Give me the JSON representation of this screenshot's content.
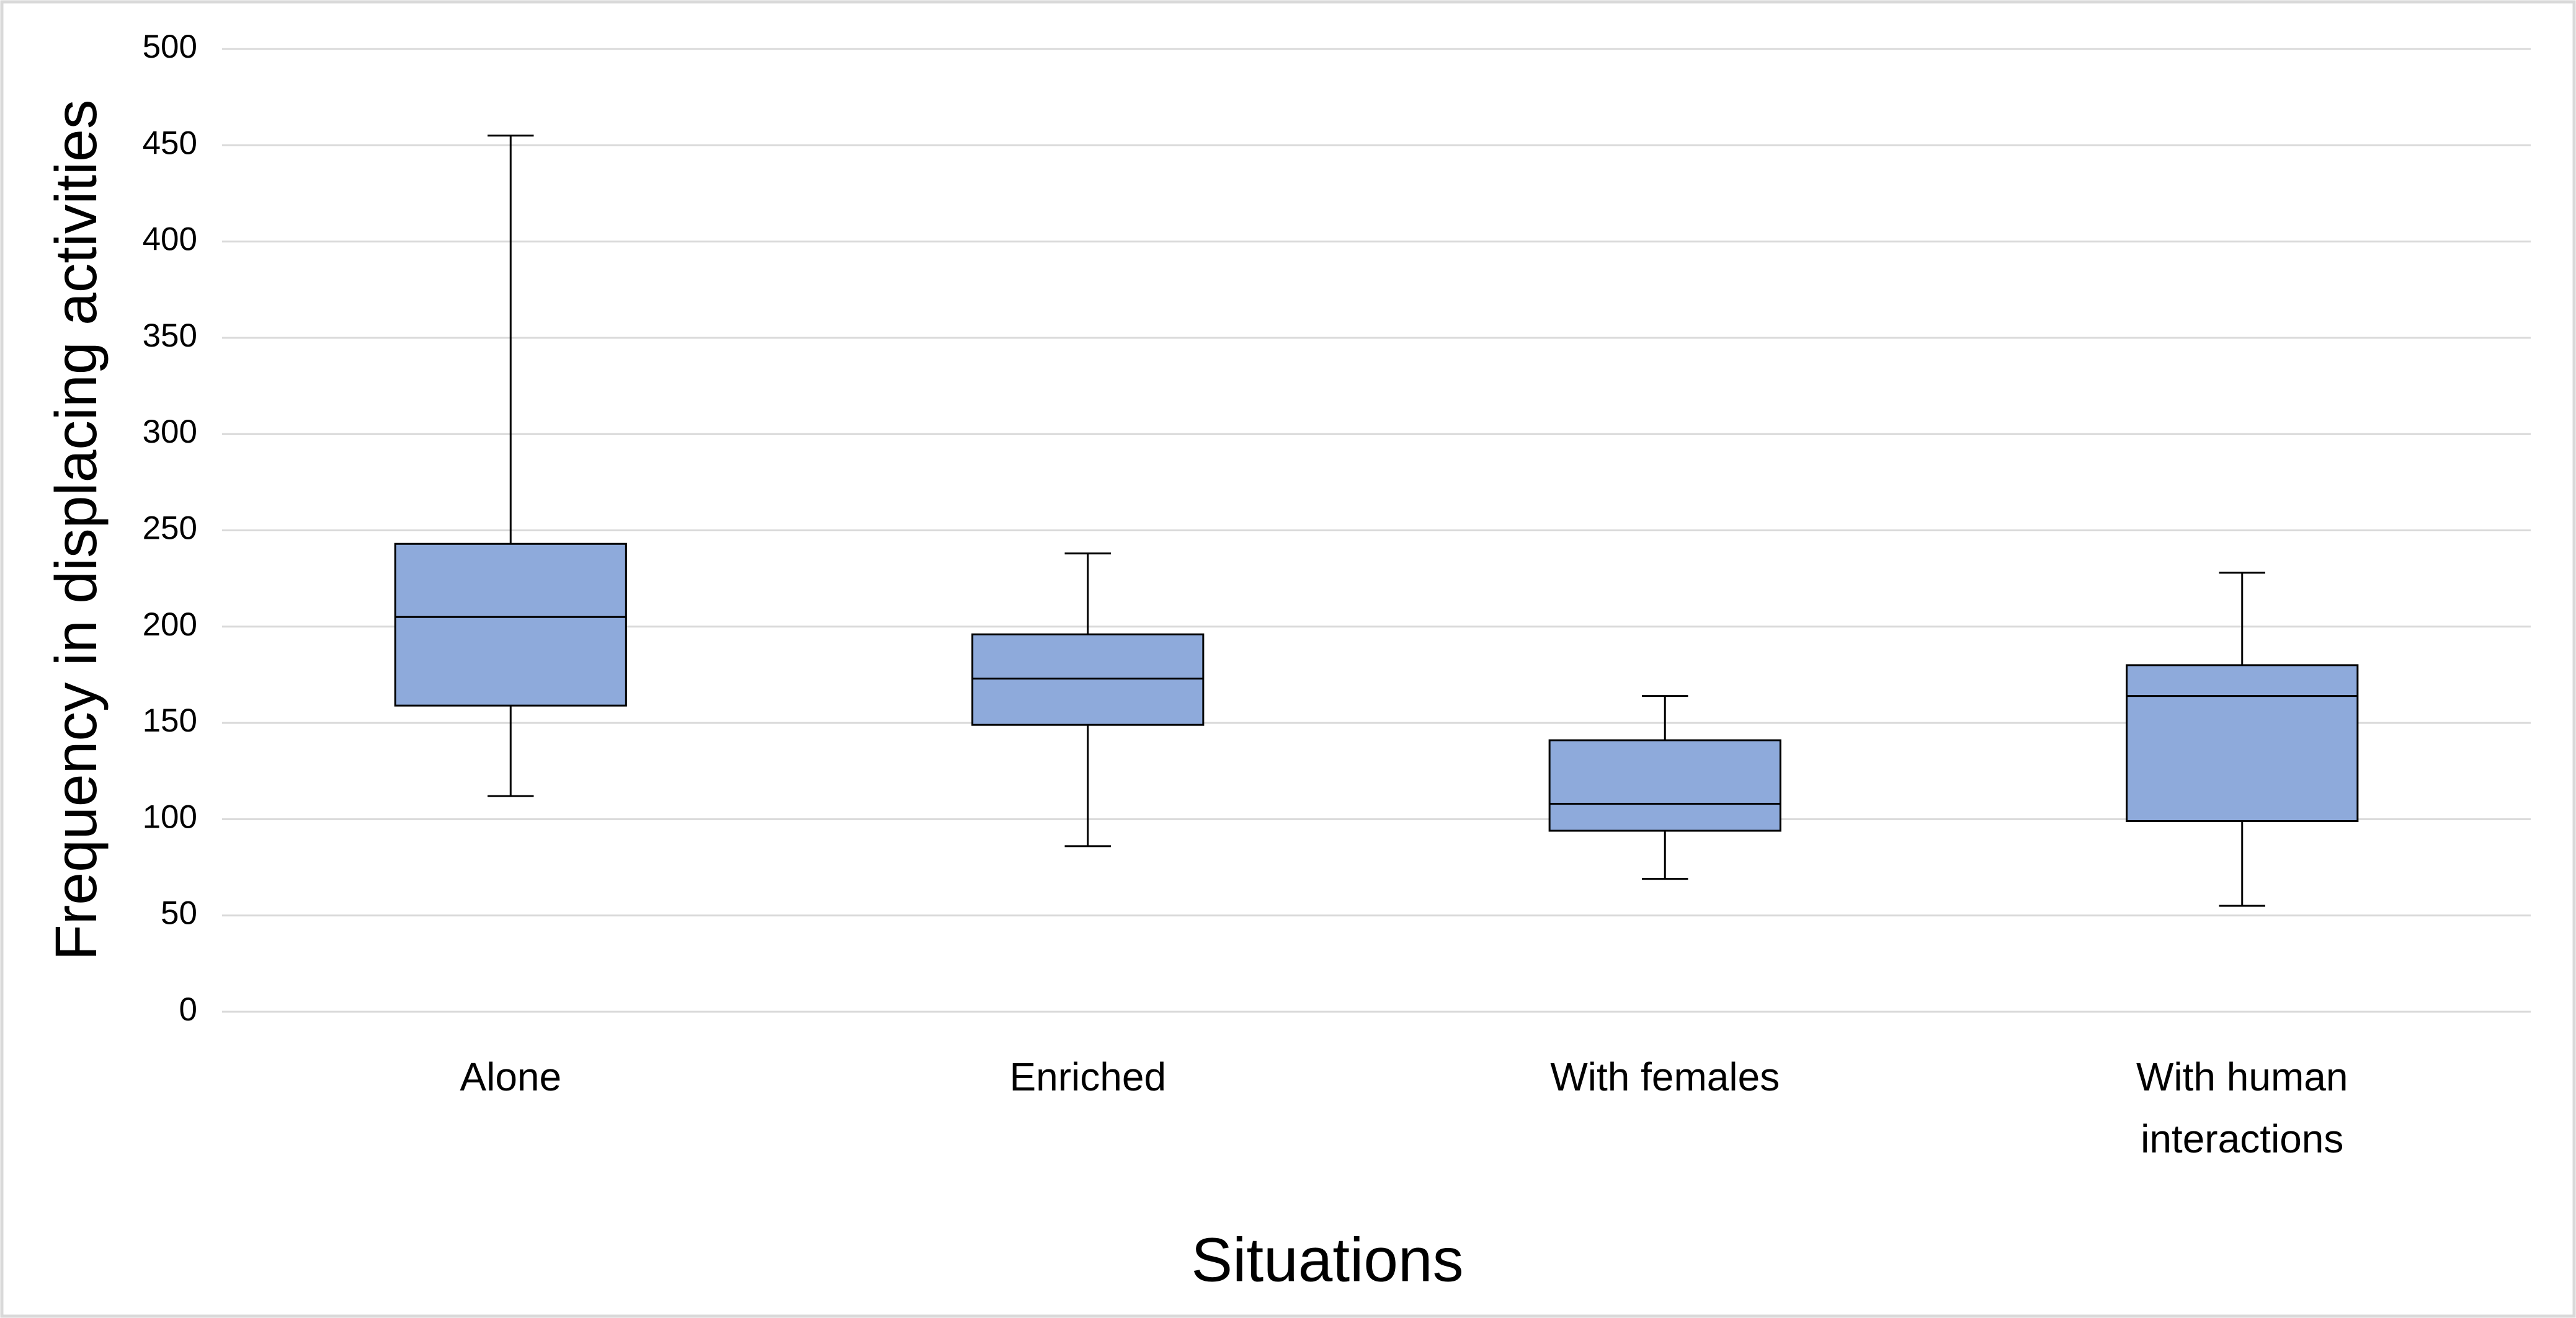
{
  "chart_data": {
    "type": "box",
    "x_label": "Situations",
    "y_label": "Frequency in displacing activities",
    "categories": [
      "Alone",
      "Enriched",
      "With females",
      "With human interactions"
    ],
    "boxes": [
      {
        "min": 112,
        "q1": 159,
        "median": 205,
        "q3": 243,
        "max": 455
      },
      {
        "min": 86,
        "q1": 149,
        "median": 173,
        "q3": 196,
        "max": 238
      },
      {
        "min": 69,
        "q1": 94,
        "median": 108,
        "q3": 141,
        "max": 164
      },
      {
        "min": 55,
        "q1": 99,
        "median": 164,
        "q3": 180,
        "max": 228
      }
    ],
    "color": "#8eaadb",
    "ylim": [
      0,
      500
    ],
    "yticks": [
      0,
      50,
      100,
      150,
      200,
      250,
      300,
      350,
      400,
      450,
      500
    ],
    "grid": true
  }
}
